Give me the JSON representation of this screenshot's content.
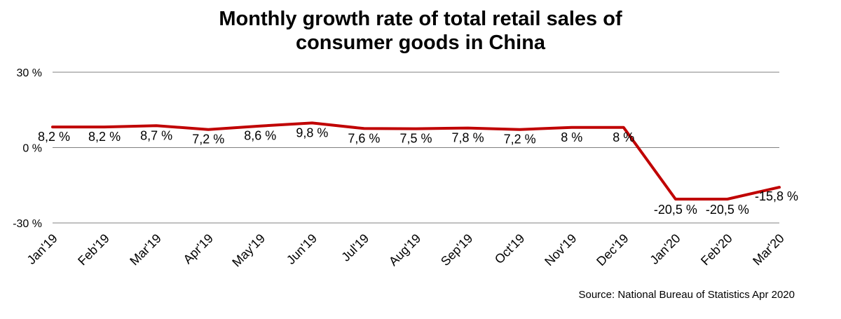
{
  "chart_data": {
    "type": "line",
    "title_lines": [
      "Monthly growth rate of total retail sales of",
      "consumer goods in China"
    ],
    "xlabel": "",
    "ylabel": "",
    "categories": [
      "Jan'19",
      "Feb'19",
      "Mar'19",
      "Apr'19",
      "May'19",
      "Jun'19",
      "Jul'19",
      "Aug'19",
      "Sep'19",
      "Oct'19",
      "Nov'19",
      "Dec'19",
      "Jan'20",
      "Feb'20",
      "Mar'20"
    ],
    "series": [
      {
        "values": [
          8.2,
          8.2,
          8.7,
          7.2,
          8.6,
          9.8,
          7.6,
          7.5,
          7.8,
          7.2,
          8,
          8,
          -20.5,
          -20.5,
          -15.8
        ],
        "labels": [
          "8,2 %",
          "8,2 %",
          "8,7 %",
          "7,2 %",
          "8,6 %",
          "9,8 %",
          "7,6 %",
          "7,5 %",
          "7,8 %",
          "7,2 %",
          "8 %",
          "8 %",
          "-20,5 %",
          "-20,5 %",
          "-15,8 %"
        ],
        "color": "#c00000"
      }
    ],
    "ylim": [
      -30,
      30
    ],
    "yticks": [
      30,
      0,
      -30
    ],
    "ytick_labels": [
      "30 %",
      "0 %",
      "-30 %"
    ],
    "grid": true,
    "gridline_color": "#808080",
    "legend": "none",
    "source": "Source: National Bureau of Statistics Apr 2020"
  }
}
